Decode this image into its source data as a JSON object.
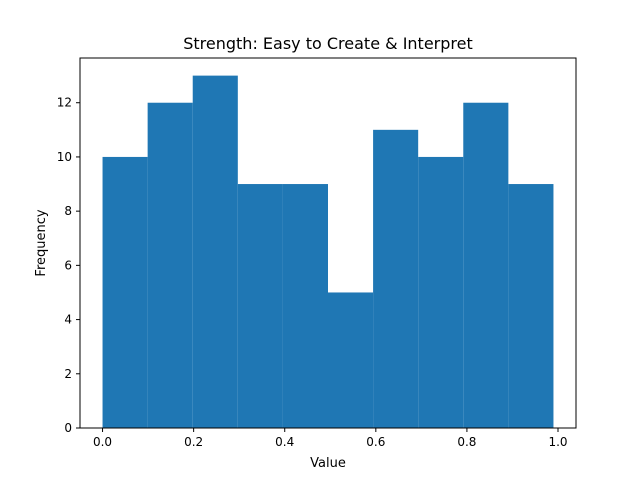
{
  "chart_data": {
    "type": "bar",
    "title": "Strength: Easy to Create & Interpret",
    "xlabel": "Value",
    "ylabel": "Frequency",
    "bin_edges": [
      0.0,
      0.099,
      0.198,
      0.297,
      0.396,
      0.495,
      0.594,
      0.693,
      0.792,
      0.891,
      0.99
    ],
    "values": [
      10,
      12,
      13,
      9,
      9,
      5,
      11,
      10,
      12,
      9
    ],
    "xlim": [
      -0.0495,
      1.0395
    ],
    "ylim": [
      0,
      13.65
    ],
    "x_ticks": [
      "0.0",
      "0.2",
      "0.4",
      "0.6",
      "0.8",
      "1.0"
    ],
    "y_ticks": [
      "0",
      "2",
      "4",
      "6",
      "8",
      "10",
      "12"
    ],
    "bar_color": "#1f77b4",
    "grid": false,
    "legend": "none"
  }
}
